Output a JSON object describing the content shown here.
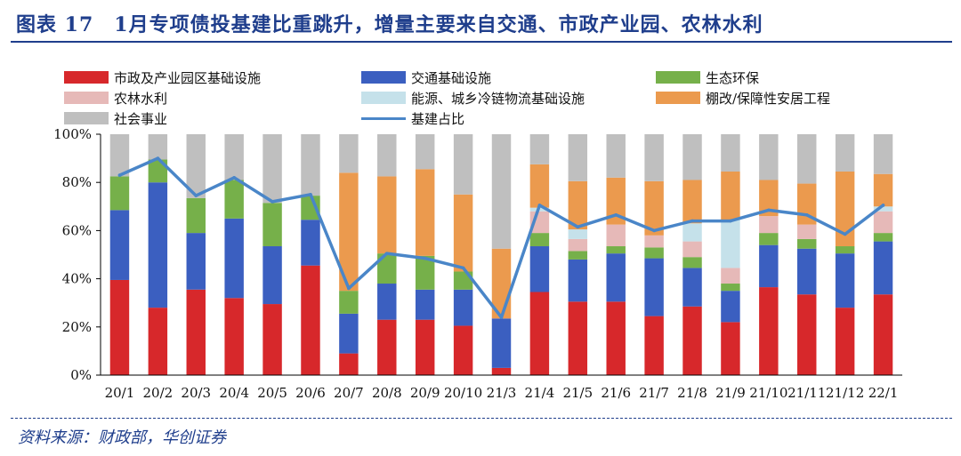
{
  "header": {
    "title": "图表 17　1月专项债投基建比重跳升，增量主要来自交通、市政产业园、农林水利"
  },
  "source": {
    "text": "资料来源：财政部，华创证券"
  },
  "chart_data": {
    "type": "bar",
    "stacked": true,
    "categories": [
      "20/1",
      "20/2",
      "20/3",
      "20/4",
      "20/5",
      "20/6",
      "20/7",
      "20/8",
      "20/9",
      "20/10",
      "21/3",
      "21/4",
      "21/5",
      "21/6",
      "21/7",
      "21/8",
      "21/9",
      "21/10",
      "21/11",
      "21/12",
      "22/1"
    ],
    "ylim": [
      0,
      100
    ],
    "yticks": [
      "0%",
      "20%",
      "40%",
      "60%",
      "80%",
      "100%"
    ],
    "legend_position": "top",
    "grid": false,
    "series": [
      {
        "name": "市政及产业园区基础设施",
        "color": "#d7282b",
        "values": [
          39.5,
          28,
          35.5,
          32,
          29.5,
          45.5,
          9,
          23,
          23,
          20.5,
          3,
          34.5,
          30.5,
          30.5,
          24.5,
          28.5,
          22,
          36.5,
          33.5,
          28,
          33.5
        ]
      },
      {
        "name": "交通基础设施",
        "color": "#3b5fc0",
        "values": [
          29,
          52,
          23.5,
          33,
          24,
          19,
          16.5,
          15,
          12.5,
          15,
          20.5,
          19,
          17.5,
          20,
          24,
          16,
          13,
          17.5,
          19,
          22.5,
          22
        ]
      },
      {
        "name": "生态环保",
        "color": "#76b04a",
        "values": [
          14,
          9.5,
          14.5,
          16,
          18,
          10,
          9.5,
          12.5,
          14,
          7.5,
          0,
          5.5,
          3.5,
          3,
          4.5,
          4.5,
          3,
          5,
          4,
          3,
          3.5
        ]
      },
      {
        "name": "农林水利",
        "color": "#e6b9b8",
        "values": [
          0,
          0,
          0,
          0,
          0,
          0,
          0,
          0,
          0,
          0,
          0,
          9,
          5,
          9,
          5,
          6.5,
          6.5,
          7,
          6,
          0,
          9
        ]
      },
      {
        "name": "能源、城乡冷链物流基础设施",
        "color": "#c5e1ea",
        "values": [
          0,
          0,
          0,
          0,
          0,
          0,
          0,
          0,
          0,
          0,
          0,
          1.5,
          4,
          0,
          0,
          7.5,
          20,
          0,
          0,
          0,
          2
        ]
      },
      {
        "name": "棚改/保障性安居工程",
        "color": "#eb9a4e",
        "values": [
          0,
          0,
          0,
          0,
          0,
          0,
          49,
          32,
          36,
          32,
          29,
          18,
          20,
          19.5,
          22.5,
          18,
          20,
          15,
          17,
          31,
          13.5
        ]
      },
      {
        "name": "社会事业",
        "color": "#bfbfbf",
        "values": [
          17.5,
          10.5,
          26.5,
          19,
          28.5,
          25.5,
          16,
          17.5,
          14.5,
          25,
          47.5,
          12.5,
          19.5,
          18,
          19.5,
          19,
          15.5,
          19,
          20.5,
          15.5,
          16.5
        ]
      }
    ],
    "line": {
      "name": "基建占比",
      "color": "#4a86c8",
      "values": [
        83,
        90,
        74.5,
        82,
        72,
        75,
        36,
        50.5,
        48.5,
        44.5,
        24,
        70.5,
        61.5,
        66.5,
        60,
        64,
        64,
        68.5,
        66.5,
        58.5,
        70.5
      ]
    }
  }
}
